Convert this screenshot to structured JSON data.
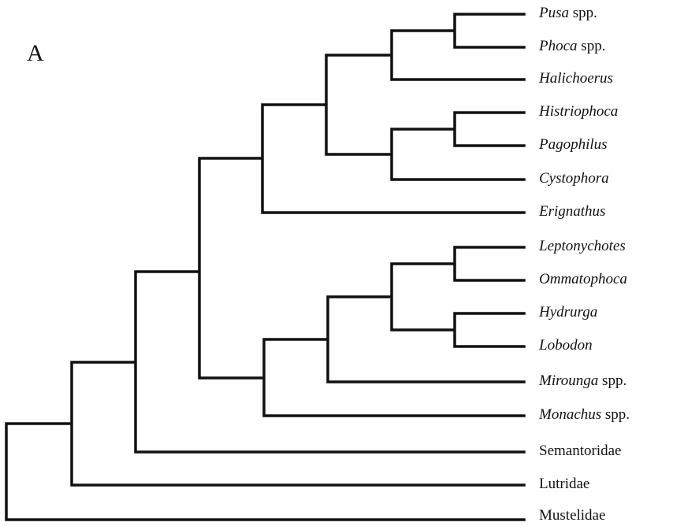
{
  "panel_label": "A",
  "leaves": [
    {
      "name": "Pusa",
      "suffix": "spp.",
      "italic": true
    },
    {
      "name": "Phoca",
      "suffix": "spp.",
      "italic": true
    },
    {
      "name": "Halichoerus",
      "italic": true
    },
    {
      "name": "Histriophoca",
      "italic": true
    },
    {
      "name": "Pagophilus",
      "italic": true
    },
    {
      "name": "Cystophora",
      "italic": true
    },
    {
      "name": "Erignathus",
      "italic": true
    },
    {
      "name": "Leptonychotes",
      "italic": true
    },
    {
      "name": "Ommatophoca",
      "italic": true
    },
    {
      "name": "Hydrurga",
      "italic": true
    },
    {
      "name": "Lobodon",
      "italic": true
    },
    {
      "name": "Mirounga",
      "suffix": "spp.",
      "italic": true
    },
    {
      "name": "Monachus",
      "suffix": "spp.",
      "italic": true
    },
    {
      "name": "Semantoridae",
      "italic": false
    },
    {
      "name": "Lutridae",
      "italic": false
    },
    {
      "name": "Mustelidae",
      "italic": false
    }
  ]
}
